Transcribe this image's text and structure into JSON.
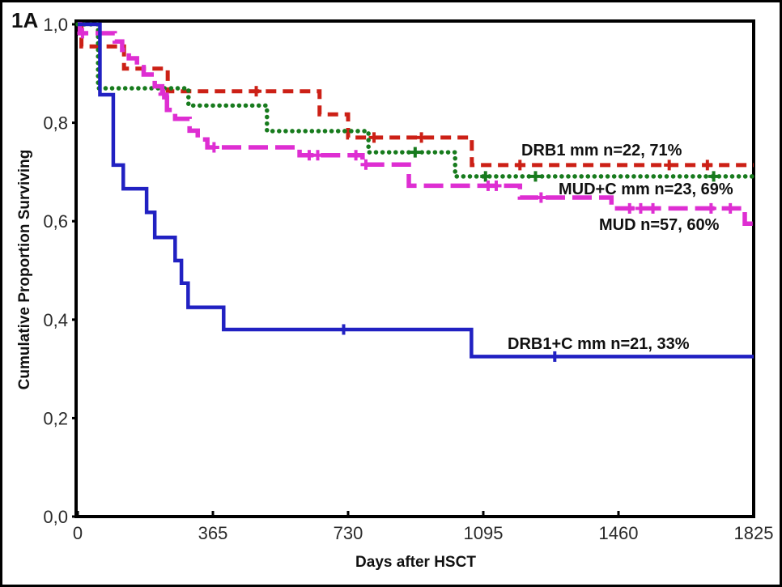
{
  "panel_label": "1A",
  "chart_data": {
    "type": "line",
    "subtype": "kaplan-meier-step-survival",
    "title": "",
    "xlabel": "Days after HSCT",
    "ylabel": "Cumulative Proportion Surviving",
    "xlim": [
      0,
      1825
    ],
    "ylim": [
      0.0,
      1.0
    ],
    "grid": false,
    "legend_position": "inline-labels",
    "x_ticks": [
      {
        "value": 0,
        "label": "0"
      },
      {
        "value": 365,
        "label": "365"
      },
      {
        "value": 730,
        "label": "730"
      },
      {
        "value": 1095,
        "label": "1095"
      },
      {
        "value": 1460,
        "label": "1460"
      },
      {
        "value": 1825,
        "label": "1825"
      }
    ],
    "y_ticks": [
      {
        "value": 1.0,
        "label": "1,0"
      },
      {
        "value": 0.8,
        "label": "0,8"
      },
      {
        "value": 0.6,
        "label": "0,6"
      },
      {
        "value": 0.4,
        "label": "0,4"
      },
      {
        "value": 0.2,
        "label": "0,2"
      },
      {
        "value": 0.0,
        "label": "0,0"
      }
    ],
    "series": [
      {
        "name": "DRB1-mm",
        "label": "DRB1 mm n=22, 71%",
        "n": 22,
        "final_percent": 71,
        "color": "#cc2016",
        "line_style": "dashed",
        "censor_style": "plus",
        "steps": [
          [
            0,
            1.0
          ],
          [
            10,
            0.955
          ],
          [
            125,
            0.91
          ],
          [
            243,
            0.864
          ],
          [
            653,
            0.817
          ],
          [
            730,
            0.77
          ],
          [
            1064,
            0.714
          ],
          [
            1825,
            0.714
          ]
        ],
        "censor_marks": [
          [
            482,
            0.864
          ],
          [
            800,
            0.77
          ],
          [
            928,
            0.77
          ],
          [
            1194,
            0.714
          ],
          [
            1597,
            0.714
          ],
          [
            1700,
            0.714
          ]
        ]
      },
      {
        "name": "MUD-C-mm",
        "label": "MUD+C mm n=23, 69%",
        "n": 23,
        "final_percent": 69,
        "color": "#177b1d",
        "line_style": "dotted",
        "censor_style": "plus",
        "steps": [
          [
            0,
            1.0
          ],
          [
            55,
            0.87
          ],
          [
            299,
            0.835
          ],
          [
            511,
            0.783
          ],
          [
            785,
            0.74
          ],
          [
            1019,
            0.691
          ],
          [
            1825,
            0.691
          ]
        ],
        "censor_marks": [
          [
            911,
            0.74
          ],
          [
            1101,
            0.691
          ],
          [
            1236,
            0.691
          ],
          [
            1717,
            0.691
          ]
        ]
      },
      {
        "name": "MUD",
        "label": "MUD n=57, 60%",
        "n": 57,
        "final_percent": 60,
        "color": "#de2ed2",
        "line_style": "long-dash",
        "censor_style": "plus",
        "steps": [
          [
            0,
            1.0
          ],
          [
            6,
            0.982
          ],
          [
            100,
            0.965
          ],
          [
            120,
            0.948
          ],
          [
            138,
            0.931
          ],
          [
            160,
            0.913
          ],
          [
            178,
            0.898
          ],
          [
            208,
            0.874
          ],
          [
            228,
            0.858
          ],
          [
            241,
            0.826
          ],
          [
            263,
            0.808
          ],
          [
            302,
            0.784
          ],
          [
            324,
            0.766
          ],
          [
            350,
            0.75
          ],
          [
            599,
            0.734
          ],
          [
            769,
            0.715
          ],
          [
            894,
            0.672
          ],
          [
            1194,
            0.648
          ],
          [
            1441,
            0.626
          ],
          [
            1801,
            0.595
          ],
          [
            1825,
            0.595
          ]
        ],
        "censor_marks": [
          [
            13,
            0.982
          ],
          [
            232,
            0.858
          ],
          [
            368,
            0.75
          ],
          [
            625,
            0.734
          ],
          [
            648,
            0.734
          ],
          [
            751,
            0.734
          ],
          [
            778,
            0.715
          ],
          [
            1108,
            0.672
          ],
          [
            1130,
            0.672
          ],
          [
            1251,
            0.648
          ],
          [
            1490,
            0.626
          ],
          [
            1520,
            0.626
          ],
          [
            1553,
            0.626
          ],
          [
            1710,
            0.626
          ],
          [
            1762,
            0.626
          ]
        ]
      },
      {
        "name": "DRB1-C-mm",
        "label": "DRB1+C mm n=21, 33%",
        "n": 21,
        "final_percent": 33,
        "color": "#2121c2",
        "line_style": "solid",
        "censor_style": "tick",
        "steps": [
          [
            0,
            1.0
          ],
          [
            60,
            0.857
          ],
          [
            96,
            0.714
          ],
          [
            123,
            0.666
          ],
          [
            186,
            0.618
          ],
          [
            208,
            0.567
          ],
          [
            263,
            0.52
          ],
          [
            280,
            0.474
          ],
          [
            298,
            0.425
          ],
          [
            394,
            0.38
          ],
          [
            1063,
            0.325
          ],
          [
            1825,
            0.325
          ]
        ],
        "censor_marks": [
          [
            718,
            0.38
          ],
          [
            1288,
            0.325
          ]
        ]
      }
    ]
  }
}
